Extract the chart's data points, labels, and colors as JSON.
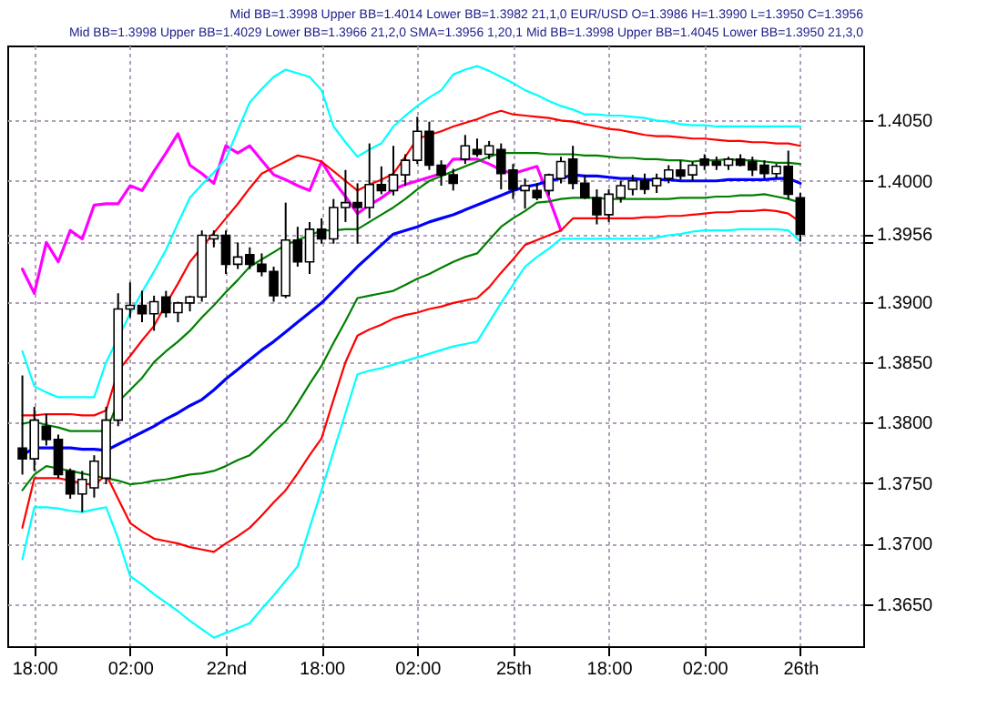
{
  "chart_data": {
    "type": "candlestick",
    "annotations": [
      "Mid BB=1.3998 Upper BB=1.4014 Lower BB=1.3982  21,1,0   EUR/USD O=1.3986 H=1.3990 L=1.3950 C=1.3956",
      "Mid BB=1.3998 Upper BB=1.4029 Lower BB=1.3966  21,2,0  SMA=1.3956  1,20,1  Mid BB=1.3998 Upper BB=1.4045 Lower BB=1.3950  21,3,0"
    ],
    "categories": [
      null,
      "18:00",
      null,
      null,
      null,
      null,
      null,
      null,
      null,
      "02:00",
      null,
      null,
      null,
      null,
      null,
      null,
      null,
      "22nd",
      null,
      null,
      null,
      null,
      null,
      null,
      null,
      "18:00",
      null,
      null,
      null,
      null,
      null,
      null,
      null,
      "02:00",
      null,
      null,
      null,
      null,
      null,
      null,
      null,
      "25th",
      null,
      null,
      null,
      null,
      null,
      null,
      null,
      "18:00",
      null,
      null,
      null,
      null,
      null,
      null,
      null,
      "02:00",
      null,
      null,
      null,
      null,
      null,
      null,
      null,
      "26th",
      null,
      null,
      null,
      null
    ],
    "ohlc": [
      [
        1.3779,
        1.3839,
        1.3757,
        1.377
      ],
      [
        1.377,
        1.3813,
        1.376,
        1.3802
      ],
      [
        1.3797,
        1.3807,
        1.3781,
        1.3786
      ],
      [
        1.3786,
        1.379,
        1.3754,
        1.3757
      ],
      [
        1.376,
        1.3762,
        1.3737,
        1.3741
      ],
      [
        1.3741,
        1.376,
        1.3726,
        1.3753
      ],
      [
        1.3746,
        1.3773,
        1.3738,
        1.3768
      ],
      [
        1.3754,
        1.3813,
        1.3749,
        1.3802
      ],
      [
        1.3802,
        1.3907,
        1.3797,
        1.3894
      ],
      [
        1.3894,
        1.3916,
        1.3887,
        1.3897
      ],
      [
        1.3897,
        1.3909,
        1.3883,
        1.389
      ],
      [
        1.389,
        1.3905,
        1.3876,
        1.39
      ],
      [
        1.3904,
        1.3909,
        1.3887,
        1.3891
      ],
      [
        1.3891,
        1.39,
        1.3883,
        1.3899
      ],
      [
        1.3899,
        1.3905,
        1.3892,
        1.3904
      ],
      [
        1.3904,
        1.3959,
        1.39,
        1.3955
      ],
      [
        1.3952,
        1.3959,
        1.3945,
        1.3955
      ],
      [
        1.3955,
        1.3959,
        1.3923,
        1.3931
      ],
      [
        1.3931,
        1.3949,
        1.3927,
        1.3937
      ],
      [
        1.3939,
        1.3945,
        1.3927,
        1.3931
      ],
      [
        1.3931,
        1.394,
        1.3921,
        1.3925
      ],
      [
        1.3925,
        1.3929,
        1.39,
        1.3905
      ],
      [
        1.3905,
        1.3982,
        1.3903,
        1.3951
      ],
      [
        1.3951,
        1.3962,
        1.3929,
        1.3933
      ],
      [
        1.3933,
        1.3966,
        1.3923,
        1.396
      ],
      [
        1.396,
        1.3969,
        1.3948,
        1.3952
      ],
      [
        1.3952,
        1.3985,
        1.3948,
        1.3978
      ],
      [
        1.3978,
        1.4009,
        1.3966,
        1.3982
      ],
      [
        1.3982,
        1.3998,
        1.3948,
        1.3978
      ],
      [
        1.3978,
        1.4031,
        1.3969,
        1.3997
      ],
      [
        1.3997,
        1.4012,
        1.3989,
        1.3992
      ],
      [
        1.3992,
        1.4029,
        1.3988,
        1.4005
      ],
      [
        1.4005,
        1.4022,
        1.3996,
        1.4017
      ],
      [
        1.4017,
        1.4053,
        1.4014,
        1.4041
      ],
      [
        1.4041,
        1.4049,
        1.4009,
        1.4013
      ],
      [
        1.4013,
        1.4017,
        1.3996,
        1.4005
      ],
      [
        1.4005,
        1.401,
        1.3992,
        1.3998
      ],
      [
        1.4018,
        1.4038,
        1.4014,
        1.4029
      ],
      [
        1.4026,
        1.4035,
        1.402,
        1.4022
      ],
      [
        1.4022,
        1.4033,
        1.4018,
        1.4029
      ],
      [
        1.4026,
        1.4031,
        1.3993,
        1.4006
      ],
      [
        1.4009,
        1.4014,
        1.3985,
        1.3993
      ],
      [
        1.3992,
        1.4002,
        1.3977,
        1.3996
      ],
      [
        1.3992,
        1.3998,
        1.3984,
        1.3986
      ],
      [
        1.3992,
        1.4006,
        1.3988,
        1.4005
      ],
      [
        1.4002,
        1.402,
        1.3998,
        1.4016
      ],
      [
        1.4018,
        1.4029,
        1.3993,
        1.3998
      ],
      [
        1.3998,
        1.4005,
        1.3985,
        1.3986
      ],
      [
        1.3986,
        1.3993,
        1.3964,
        1.3972
      ],
      [
        1.3972,
        1.3993,
        1.3966,
        1.3989
      ],
      [
        1.3986,
        1.4,
        1.3982,
        1.3996
      ],
      [
        1.3993,
        1.4005,
        1.3988,
        1.4
      ],
      [
        1.4,
        1.4006,
        1.3989,
        1.3993
      ],
      [
        1.3996,
        1.4006,
        1.399,
        1.4002
      ],
      [
        1.4002,
        1.4013,
        1.3998,
        1.4009
      ],
      [
        1.4009,
        1.4017,
        1.4001,
        1.4004
      ],
      [
        1.4005,
        1.4016,
        1.4,
        1.4013
      ],
      [
        1.4018,
        1.4022,
        1.4009,
        1.4013
      ],
      [
        1.4016,
        1.402,
        1.4009,
        1.4013
      ],
      [
        1.4013,
        1.402,
        1.4009,
        1.4018
      ],
      [
        1.4018,
        1.4022,
        1.4012,
        1.4013
      ],
      [
        1.4016,
        1.402,
        1.4004,
        1.4009
      ],
      [
        1.4013,
        1.4017,
        1.4002,
        1.4006
      ],
      [
        1.4006,
        1.4014,
        1.4002,
        1.4012
      ],
      [
        1.4012,
        1.4025,
        1.3985,
        1.3989
      ],
      [
        1.3986,
        1.399,
        1.395,
        1.3956
      ],
      null,
      null,
      null,
      null
    ],
    "colors": [
      "#000000",
      "#ffffff",
      "#000000",
      "#000000",
      "#000000",
      "#ffffff",
      "#ffffff",
      "#ffffff",
      "#ffffff",
      "#ffffff",
      "#000000",
      "#ffffff",
      "#000000",
      "#ffffff",
      "#ffffff",
      "#ffffff",
      "#ffffff",
      "#000000",
      "#ffffff",
      "#000000",
      "#000000",
      "#000000",
      "#ffffff",
      "#000000",
      "#ffffff",
      "#000000",
      "#ffffff",
      "#ffffff",
      "#000000",
      "#ffffff",
      "#000000",
      "#ffffff",
      "#ffffff",
      "#ffffff",
      "#000000",
      "#000000",
      "#000000",
      "#ffffff",
      "#000000",
      "#ffffff",
      "#000000",
      "#000000",
      "#ffffff",
      "#000000",
      "#ffffff",
      "#ffffff",
      "#000000",
      "#000000",
      "#000000",
      "#ffffff",
      "#ffffff",
      "#ffffff",
      "#000000",
      "#ffffff",
      "#ffffff",
      "#000000",
      "#ffffff",
      "#000000",
      "#000000",
      "#ffffff",
      "#000000",
      "#000000",
      "#000000",
      "#ffffff",
      "#000000",
      "#000000",
      null,
      null,
      null,
      null
    ],
    "series": [
      {
        "type": "line",
        "color": "#ff00ff",
        "values": [
          1.3927,
          1.3907,
          1.3949,
          1.3933,
          1.3959,
          1.3952,
          1.398,
          1.3981,
          1.3981,
          1.3996,
          1.3992,
          1.4008,
          1.4023,
          1.4039,
          1.4013,
          1.4006,
          1.3998,
          1.4029,
          1.4023,
          1.4029,
          1.4017,
          1.4005,
          1.4001,
          1.3996,
          1.3992,
          1.4016,
          1.4,
          1.3987,
          1.3973,
          1.398,
          1.3986,
          1.3993,
          1.3997,
          1.4,
          1.4003,
          1.4006,
          1.4018,
          1.4018,
          1.4018,
          1.4014,
          1.4009,
          1.4006,
          1.4009,
          1.4012,
          1.3986,
          1.3959,
          null,
          null,
          null,
          null,
          null,
          null,
          null,
          null,
          null,
          null,
          null,
          null,
          null,
          null,
          null,
          null,
          null,
          null,
          null,
          null,
          null,
          null,
          null,
          null
        ]
      },
      {
        "type": "line",
        "color": "#0000ff",
        "values": [
          1.3773,
          1.3779,
          1.3779,
          1.3779,
          1.3779,
          1.3778,
          1.3778,
          1.3777,
          1.3782,
          1.3787,
          1.3792,
          1.3797,
          1.3803,
          1.3808,
          1.3814,
          1.3819,
          1.3827,
          1.3836,
          1.3844,
          1.3852,
          1.386,
          1.3867,
          1.3875,
          1.3883,
          1.3891,
          1.3899,
          1.3909,
          1.3919,
          1.3929,
          1.3938,
          1.3947,
          1.3956,
          1.3959,
          1.3962,
          1.3966,
          1.3969,
          1.3972,
          1.3976,
          1.398,
          1.3984,
          1.3988,
          1.3992,
          1.3995,
          1.3997,
          1.4,
          1.4002,
          1.4005,
          1.4004,
          1.4004,
          1.4003,
          1.4002,
          1.4002,
          1.4001,
          1.4001,
          1.4001,
          1.4,
          1.4,
          1.4,
          1.4,
          1.4001,
          1.4001,
          1.4001,
          1.4001,
          1.4002,
          1.4002,
          1.3998,
          null,
          null,
          null,
          null
        ]
      },
      {
        "type": "line",
        "color": "#008000",
        "values": [
          1.3799,
          1.3801,
          1.3798,
          1.3796,
          1.3793,
          1.3793,
          1.3793,
          1.3793,
          1.3817,
          1.3827,
          1.3837,
          1.385,
          1.3859,
          1.3867,
          1.3876,
          1.3887,
          1.3897,
          1.3908,
          1.3918,
          1.3929,
          1.3935,
          1.3941,
          1.3947,
          1.3951,
          1.3955,
          1.3959,
          1.3959,
          1.396,
          1.396,
          1.3966,
          1.3972,
          1.3978,
          1.3985,
          1.3993,
          1.4,
          1.4004,
          1.4008,
          1.4012,
          1.4016,
          1.402,
          1.4023,
          1.4023,
          1.4023,
          1.4023,
          1.4022,
          1.4022,
          1.4022,
          1.4021,
          1.4021,
          1.402,
          1.4019,
          1.4019,
          1.4018,
          1.4018,
          1.4017,
          1.4017,
          1.4016,
          1.4017,
          1.4017,
          1.4018,
          1.4017,
          1.4017,
          1.4016,
          1.4015,
          1.4015,
          1.4014,
          null,
          null,
          null,
          null
        ]
      },
      {
        "type": "line",
        "color": "#008000",
        "values": [
          1.3744,
          1.3757,
          1.3764,
          1.3762,
          1.376,
          1.3758,
          1.3756,
          1.3754,
          1.3752,
          1.3749,
          1.375,
          1.3752,
          1.3753,
          1.3755,
          1.3757,
          1.3758,
          1.376,
          1.3764,
          1.3769,
          1.3773,
          1.3782,
          1.3792,
          1.3801,
          1.3816,
          1.3832,
          1.3847,
          1.3866,
          1.3884,
          1.3903,
          1.3905,
          1.3907,
          1.3909,
          1.3914,
          1.3919,
          1.3923,
          1.3928,
          1.3933,
          1.3937,
          1.394,
          1.3951,
          1.3962,
          1.3969,
          1.3975,
          1.3982,
          1.3983,
          1.3985,
          1.3986,
          1.3986,
          1.3986,
          1.3985,
          1.3985,
          1.3985,
          1.3985,
          1.3985,
          1.3985,
          1.3986,
          1.3986,
          1.3986,
          1.3987,
          1.3987,
          1.3988,
          1.3988,
          1.3989,
          1.3987,
          1.3985,
          1.3982,
          null,
          null,
          null,
          null
        ]
      },
      {
        "type": "line",
        "color": "#ff0000",
        "values": [
          1.3806,
          1.3806,
          1.3807,
          1.3807,
          1.3807,
          1.3806,
          1.3806,
          1.381,
          1.3843,
          1.3855,
          1.3868,
          1.388,
          1.3898,
          1.3915,
          1.3933,
          1.3945,
          1.3957,
          1.3969,
          1.3981,
          1.3994,
          1.4006,
          1.4011,
          1.4016,
          1.4021,
          1.4019,
          1.4016,
          1.4008,
          1.4,
          1.3992,
          1.3997,
          1.4001,
          1.4006,
          1.402,
          1.4035,
          1.4038,
          1.4041,
          1.4045,
          1.4048,
          1.4051,
          1.4055,
          1.4058,
          1.4055,
          1.4054,
          1.4053,
          1.4052,
          1.405,
          1.4049,
          1.4047,
          1.4045,
          1.4043,
          1.4042,
          1.404,
          1.4038,
          1.4037,
          1.4037,
          1.4036,
          1.4035,
          1.4035,
          1.4034,
          1.4033,
          1.4033,
          1.4032,
          1.4032,
          1.4031,
          1.4031,
          1.4029,
          null,
          null,
          null,
          null
        ]
      },
      {
        "type": "line",
        "color": "#ff0000",
        "values": [
          1.3713,
          1.3754,
          1.3754,
          1.3754,
          1.3752,
          1.375,
          1.3748,
          1.3757,
          1.3737,
          1.3717,
          1.371,
          1.3704,
          1.3702,
          1.37,
          1.3697,
          1.3695,
          1.3693,
          1.37,
          1.3706,
          1.3713,
          1.3723,
          1.3734,
          1.3744,
          1.3758,
          1.3773,
          1.3787,
          1.3819,
          1.385,
          1.3872,
          1.3877,
          1.3881,
          1.3886,
          1.3889,
          1.3891,
          1.3894,
          1.3896,
          1.3899,
          1.3901,
          1.3903,
          1.3912,
          1.3924,
          1.3935,
          1.3947,
          1.3951,
          1.3955,
          1.3959,
          1.3969,
          1.3969,
          1.3969,
          1.3969,
          1.3969,
          1.3969,
          1.397,
          1.397,
          1.3971,
          1.3971,
          1.3972,
          1.3973,
          1.3974,
          1.3974,
          1.3975,
          1.3975,
          1.3976,
          1.3975,
          1.3973,
          1.3966,
          null,
          null,
          null,
          null
        ]
      },
      {
        "type": "line",
        "color": "#00ffff",
        "values": [
          1.3859,
          1.383,
          1.3825,
          1.3821,
          1.3821,
          1.3821,
          1.3821,
          1.385,
          null,
          1.389,
          1.3908,
          1.3925,
          1.3943,
          1.3965,
          1.3986,
          1.3997,
          1.4007,
          1.4018,
          1.4042,
          1.4065,
          1.4076,
          1.4086,
          1.4092,
          1.4089,
          1.4086,
          1.4075,
          1.4045,
          1.4032,
          1.402,
          1.4026,
          1.4031,
          1.4045,
          1.4054,
          1.4062,
          1.4069,
          1.4075,
          1.4088,
          1.4092,
          1.4095,
          1.4091,
          1.4086,
          1.4081,
          1.4075,
          1.4071,
          1.4066,
          1.4062,
          1.4059,
          1.4055,
          1.4055,
          1.4054,
          1.4054,
          1.4053,
          1.4052,
          1.405,
          1.4049,
          1.4047,
          1.4046,
          1.4046,
          1.4045,
          1.4045,
          1.4045,
          1.4045,
          1.4045,
          1.4045,
          1.4045,
          1.4045,
          null,
          null,
          null,
          null
        ]
      },
      {
        "type": "line",
        "color": "#00ffff",
        "values": [
          1.3687,
          1.373,
          1.373,
          1.3729,
          1.3727,
          1.3726,
          1.3728,
          1.373,
          1.3704,
          1.3673,
          1.3666,
          1.3658,
          1.3651,
          1.3644,
          1.3636,
          1.3629,
          1.3622,
          1.3626,
          1.363,
          1.3634,
          1.3646,
          1.3657,
          1.3669,
          1.3681,
          1.3713,
          1.3744,
          1.3776,
          1.3808,
          1.384,
          1.3843,
          1.3845,
          1.3848,
          1.3851,
          1.3854,
          1.3857,
          1.386,
          1.3863,
          1.3865,
          1.3867,
          1.3883,
          1.3899,
          1.3914,
          1.3929,
          1.3937,
          1.3944,
          1.3952,
          1.3952,
          1.3952,
          1.3952,
          1.3952,
          1.3952,
          1.3952,
          1.3952,
          1.3953,
          1.3955,
          1.3956,
          1.3958,
          1.3959,
          1.3959,
          1.3959,
          1.396,
          1.396,
          1.396,
          1.396,
          1.3959,
          1.395,
          null,
          null,
          null,
          null
        ]
      }
    ],
    "ylim": [
      1.3615,
      1.4112
    ],
    "yticks": [
      {
        "value": 1.365,
        "label": "1.3650"
      },
      {
        "value": 1.37,
        "label": "1.3700"
      },
      {
        "value": 1.375,
        "label": "1.3750"
      },
      {
        "value": 1.38,
        "label": "1.3800"
      },
      {
        "value": 1.385,
        "label": "1.3850"
      },
      {
        "value": 1.39,
        "label": "1.3900"
      },
      {
        "value": 1.395,
        "label": null
      },
      {
        "value": 1.3956,
        "label": "1.3956"
      },
      {
        "value": 1.4,
        "label": "1.4000"
      },
      {
        "value": 1.405,
        "label": "1.4050"
      }
    ],
    "grid": true,
    "line_style": "solid",
    "marker": "none"
  }
}
